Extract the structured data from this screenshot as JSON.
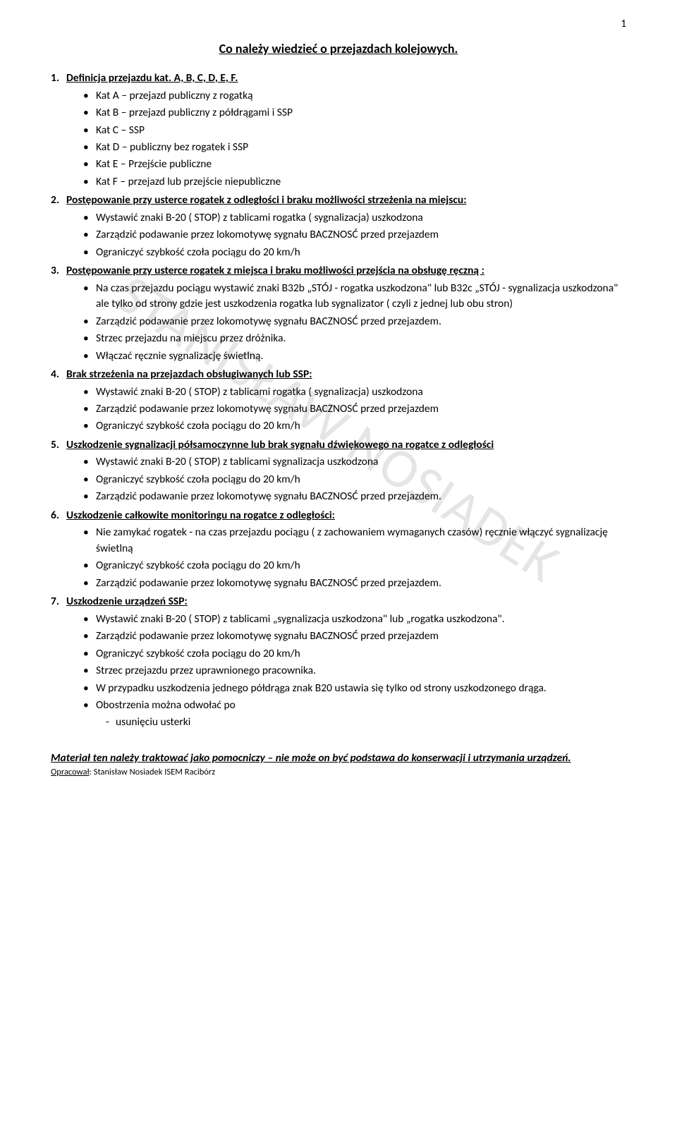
{
  "page_number": "1",
  "title": "Co należy wiedzieć o przejazdach kolejowych.",
  "watermark": "STANISŁAW NOSIADEK",
  "sections": [
    {
      "num": "1.",
      "heading": "Definicja przejazdu kat. A, B, C, D, E, F.",
      "bullets": [
        "Kat A – przejazd publiczny z rogatką",
        "Kat B – przejazd publiczny z półdrągami i SSP",
        "Kat C – SSP",
        "Kat D – publiczny bez rogatek i SSP",
        "Kat E – Przejście publiczne",
        "Kat F – przejazd lub przejście niepubliczne"
      ]
    },
    {
      "num": "2.",
      "heading": "Postępowanie przy usterce rogatek z odległości i braku możliwości strzeżenia na miejscu:",
      "bullets": [
        "Wystawić znaki B-20 ( STOP) z tablicami rogatka ( sygnalizacja) uszkodzona",
        "Zarządzić podawanie przez lokomotywę sygnału BACZNOSĆ przed przejazdem",
        "Ograniczyć szybkość czoła pociągu do 20 km/h"
      ]
    },
    {
      "num": "3.",
      "heading": "Postępowanie przy usterce rogatek z miejsca i braku możliwości przejścia na obsługę ręczną :",
      "bullets": [
        "Na czas przejazdu pociągu wystawić znaki B32b „STÓJ - rogatka uszkodzona\" lub B32c „STÓJ - sygnalizacja uszkodzona\" ale tylko od strony gdzie jest uszkodzenia rogatka lub sygnalizator ( czyli z jednej lub obu stron)",
        "Zarządzić podawanie przez lokomotywę sygnału BACZNOSĆ przed przejazdem.",
        "Strzec przejazdu na miejscu przez dróżnika.",
        "Włączać ręcznie sygnalizację świetlną."
      ]
    },
    {
      "num": "4.",
      "heading": "Brak strzeżenia na przejazdach obsługiwanych lub SSP:",
      "bullets": [
        "Wystawić znaki B-20 ( STOP) z tablicami rogatka ( sygnalizacja) uszkodzona",
        "Zarządzić podawanie przez lokomotywę sygnału BACZNOSĆ przed przejazdem",
        "Ograniczyć szybkość czoła pociągu do 20 km/h"
      ]
    },
    {
      "num": "5.",
      "heading": "Uszkodzenie sygnalizacji półsamoczynne lub brak sygnału dźwiękowego na rogatce z odległości",
      "bullets": [
        "Wystawić znaki B-20 ( STOP) z tablicami sygnalizacja uszkodzona",
        "Ograniczyć szybkość czoła pociągu do 20 km/h",
        "Zarządzić podawanie przez lokomotywę sygnału BACZNOSĆ przed przejazdem."
      ]
    },
    {
      "num": "6.",
      "heading": "Uszkodzenie całkowite monitoringu na rogatce z odległości:",
      "bullets": [
        "Nie zamykać rogatek - na czas przejazdu pociągu ( z zachowaniem wymaganych czasów) ręcznie włączyć sygnalizację świetlną",
        "Ograniczyć szybkość czoła pociągu do 20 km/h",
        "Zarządzić podawanie przez lokomotywę sygnału BACZNOSĆ przed przejazdem."
      ]
    },
    {
      "num": "7.",
      "heading": "Uszkodzenie urządzeń SSP:",
      "bullets": [
        "Wystawić znaki B-20 ( STOP) z tablicami „sygnalizacja uszkodzona\" lub „rogatka uszkodzona\".",
        "Zarządzić podawanie przez lokomotywę sygnału BACZNOSĆ przed przejazdem",
        "Ograniczyć szybkość czoła pociągu do 20 km/h",
        "Strzec przejazdu przez uprawnionego pracownika.",
        "W przypadku uszkodzenia jednego półdrąga znak B20 ustawia się tylko od strony uszkodzonego drąga.",
        "Obostrzenia można odwołać po"
      ],
      "dash": [
        "usunięciu usterki"
      ]
    }
  ],
  "footer_note": "Materiał ten należy traktować jako pomocniczy – nie może on być podstawa do konserwacji i utrzymania urządzeń.",
  "footer_author_label": "Opracował",
  "footer_author_name": ": Stanisław Nosiadek ISEM Racibórz"
}
